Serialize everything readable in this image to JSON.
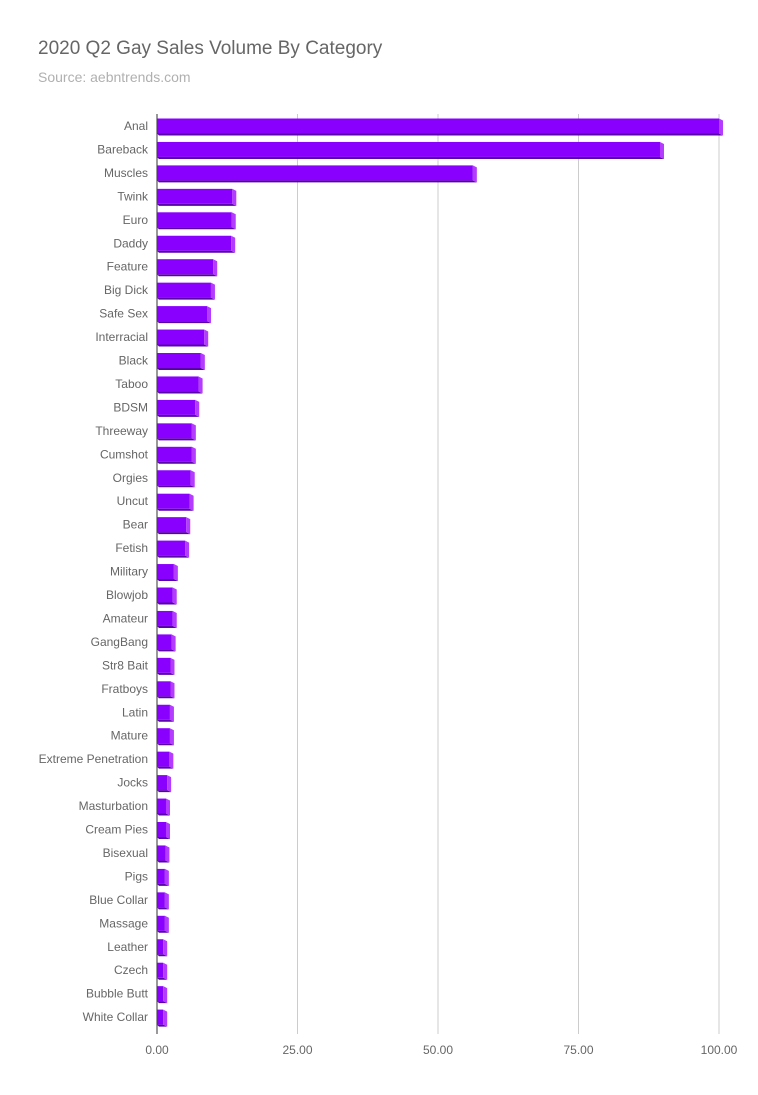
{
  "chart_data": {
    "type": "bar",
    "orientation": "horizontal",
    "title": "2020 Q2 Gay Sales Volume By Category",
    "subtitle": "Source: aebntrends.com",
    "xlabel": "",
    "ylabel": "",
    "xlim": [
      0,
      100
    ],
    "x_ticks": [
      "0.00",
      "25.00",
      "50.00",
      "75.00",
      "100.00"
    ],
    "x_tick_values": [
      0,
      25,
      50,
      75,
      100
    ],
    "grid": true,
    "legend": "none",
    "bar_color": "#8a00ff",
    "bar_side_color": "#b43cff",
    "bar_bottom_color": "#5a00a8",
    "categories": [
      "Anal",
      "Bareback",
      "Muscles",
      "Twink",
      "Euro",
      "Daddy",
      "Feature",
      "Big Dick",
      "Safe Sex",
      "Interracial",
      "Black",
      "Taboo",
      "BDSM",
      "Threeway",
      "Cumshot",
      "Orgies",
      "Uncut",
      "Bear",
      "Fetish",
      "Military",
      "Blowjob",
      "Amateur",
      "GangBang",
      "Str8 Bait",
      "Fratboys",
      "Latin",
      "Mature",
      "Extreme Penetration",
      "Jocks",
      "Masturbation",
      "Cream Pies",
      "Bisexual",
      "Pigs",
      "Blue Collar",
      "Massage",
      "Leather",
      "Czech",
      "Bubble Butt",
      "White Collar"
    ],
    "values": [
      100,
      89.5,
      56.2,
      13.4,
      13.3,
      13.2,
      10.0,
      9.6,
      8.9,
      8.4,
      7.8,
      7.4,
      6.8,
      6.2,
      6.2,
      6.0,
      5.8,
      5.2,
      5.0,
      3.0,
      2.8,
      2.8,
      2.6,
      2.4,
      2.4,
      2.3,
      2.3,
      2.2,
      1.8,
      1.6,
      1.6,
      1.5,
      1.4,
      1.4,
      1.4,
      1.1,
      1.1,
      1.1,
      1.1
    ]
  }
}
